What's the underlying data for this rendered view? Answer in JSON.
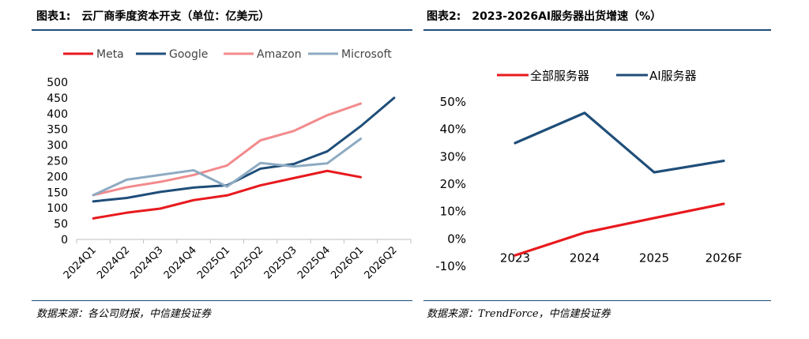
{
  "left": {
    "title_label": "图表1:",
    "title": "云厂商季度资本开支（单位：亿美元）",
    "source": "数据来源：各公司财报，中信建投证券",
    "colors": {
      "Meta": "#e8191d",
      "Google": "#1f4e79",
      "Amazon": "#f28b8d",
      "Microsoft": "#8eabc2"
    },
    "chart_data": {
      "type": "line",
      "categories": [
        "2024Q1",
        "2024Q2",
        "2024Q3",
        "2024Q4",
        "2025Q1",
        "2025Q2",
        "2025Q3",
        "2025Q4",
        "2026Q1",
        "2026Q2"
      ],
      "ylim": [
        0,
        500
      ],
      "yticks": [
        "0",
        "50",
        "100",
        "150",
        "200",
        "250",
        "300",
        "350",
        "400",
        "450",
        "500"
      ],
      "series": [
        {
          "name": "Meta",
          "values": [
            67,
            85,
            98,
            125,
            140,
            172,
            195,
            218,
            198,
            null
          ]
        },
        {
          "name": "Google",
          "values": [
            121,
            132,
            151,
            165,
            172,
            225,
            240,
            280,
            360,
            450
          ]
        },
        {
          "name": "Amazon",
          "values": [
            141,
            166,
            183,
            205,
            235,
            315,
            345,
            395,
            432,
            null
          ]
        },
        {
          "name": "Microsoft",
          "values": [
            141,
            190,
            205,
            220,
            168,
            243,
            232,
            242,
            320,
            null
          ]
        }
      ]
    }
  },
  "right": {
    "title_label": "图表2:",
    "title": "2023-2026AI服务器出货增速（%）",
    "source": "数据来源：TrendForce，中信建投证券",
    "colors": {
      "全部服务器": "#e8191d",
      "AI服务器": "#1f4e79"
    },
    "chart_data": {
      "type": "line",
      "categories": [
        "2023",
        "2024",
        "2025",
        "2026F"
      ],
      "ylim": [
        -10,
        50
      ],
      "yticks": [
        "-10%",
        "0%",
        "10%",
        "20%",
        "30%",
        "40%",
        "50%"
      ],
      "series": [
        {
          "name": "全部服务器",
          "values": [
            -6,
            2.3,
            7.6,
            12.8
          ]
        },
        {
          "name": "AI服务器",
          "values": [
            35,
            46,
            24.3,
            28.5
          ]
        }
      ]
    }
  }
}
